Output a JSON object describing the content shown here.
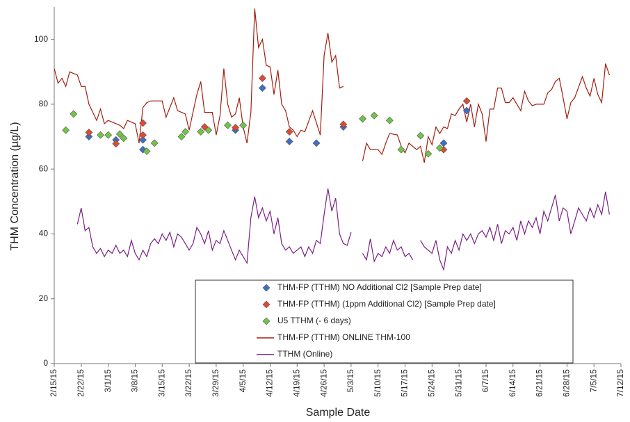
{
  "chart_data": {
    "type": "line",
    "xlabel": "Sample Date",
    "ylabel": "THM Concentration (µg/L)",
    "xlim": [
      "2/15/15",
      "7/12/15"
    ],
    "xticks": [
      "2/15/15",
      "2/22/15",
      "3/1/15",
      "3/8/15",
      "3/15/15",
      "3/22/15",
      "3/29/15",
      "4/5/15",
      "4/12/15",
      "4/19/15",
      "4/26/15",
      "5/3/15",
      "5/10/15",
      "5/17/15",
      "5/24/15",
      "5/31/15",
      "6/7/15",
      "6/14/15",
      "6/21/15",
      "6/28/15",
      "7/5/15",
      "7/12/15"
    ],
    "ylim": [
      0,
      110
    ],
    "yticks": [
      0,
      20,
      40,
      60,
      80,
      100
    ],
    "series": [
      {
        "name": "THM-FP (TTHM) NO Additional Cl2 [Sample Prep date]",
        "type": "scatter",
        "color": "#3f6fc4",
        "x": [
          "2/24/15",
          "3/3/15",
          "3/10/15",
          "3/10/15",
          "4/3/15",
          "4/10/15",
          "4/17/15",
          "4/24/15",
          "5/1/15",
          "5/27/15",
          "6/2/15"
        ],
        "values": [
          70,
          69,
          69,
          66,
          72,
          85,
          68.5,
          68,
          73,
          68,
          78
        ]
      },
      {
        "name": "THM-FP (TTHM) (1ppm Additional Cl2) [Sample Prep date]",
        "type": "scatter",
        "color": "#e04a32",
        "x": [
          "2/24/15",
          "3/3/15",
          "3/10/15",
          "3/10/15",
          "3/26/15",
          "4/3/15",
          "4/10/15",
          "4/17/15",
          "5/1/15",
          "5/27/15",
          "6/2/15"
        ],
        "values": [
          71.3,
          67.8,
          74.2,
          70.5,
          73,
          72.8,
          88,
          71.5,
          73.8,
          66,
          81
        ]
      },
      {
        "name": "U5 TTHM (- 6 days)",
        "type": "scatter",
        "color": "#72c447",
        "x": [
          "2/18/15",
          "2/20/15",
          "2/27/15",
          "3/1/15",
          "3/4/15",
          "3/5/15",
          "3/11/15",
          "3/13/15",
          "3/20/15",
          "3/21/15",
          "3/25/15",
          "3/27/15",
          "4/1/15",
          "4/5/15",
          "5/6/15",
          "5/9/15",
          "5/13/15",
          "5/16/15",
          "5/21/15",
          "5/23/15",
          "5/26/15"
        ],
        "values": [
          72,
          77,
          70.5,
          70.5,
          70.8,
          69.5,
          65.5,
          68,
          70,
          71.5,
          71.5,
          72,
          73.5,
          73.5,
          75.5,
          76.5,
          75,
          66,
          70.3,
          64.7,
          66.5
        ]
      },
      {
        "name": "THM-FP (TTHM) ONLINE THM-100",
        "type": "line",
        "color": "#a31d0e",
        "x": [
          "2/15/15",
          "2/16/15",
          "2/17/15",
          "2/18/15",
          "2/19/15",
          "2/21/15",
          "2/22/15",
          "2/23/15",
          "2/24/15",
          "2/26/15",
          "2/27/15",
          "2/28/15",
          "3/1/15",
          "3/2/15",
          "3/4/15",
          "3/5/15",
          "3/6/15",
          "3/8/15",
          "3/9/15",
          "3/10/15",
          "3/11/15",
          "3/12/15",
          "3/15/15",
          "3/16/15",
          "3/18/15",
          "3/19/15",
          "3/21/15",
          "3/22/15",
          "3/24/15",
          "3/25/15",
          "3/26/15",
          "3/28/15",
          "3/29/15",
          "3/30/15",
          "3/31/15",
          "4/1/15",
          "4/2/15",
          "4/3/15",
          "4/4/15",
          "4/5/15",
          "4/6/15",
          "4/7/15",
          "4/8/15",
          "4/9/15",
          "4/10/15",
          "4/11/15",
          "4/12/15",
          "4/13/15",
          "4/14/15",
          "4/15/15",
          "4/16/15",
          "4/17/15",
          "4/18/15",
          "4/19/15",
          "4/20/15",
          "4/21/15",
          "4/23/15",
          "4/25/15",
          "4/26/15",
          "4/27/15",
          "4/28/15",
          "4/29/15",
          "4/30/15",
          "5/1/15",
          "5/3/15",
          "5/6/15",
          "5/7/15",
          "5/8/15",
          "5/10/15",
          "5/11/15",
          "5/12/15",
          "5/13/15",
          "5/15/15",
          "5/16/15",
          "5/17/15",
          "5/18/15",
          "5/20/15",
          "5/21/15",
          "5/22/15",
          "5/23/15",
          "5/24/15",
          "5/25/15",
          "5/26/15",
          "5/27/15",
          "5/28/15",
          "5/29/15",
          "5/30/15",
          "5/31/15",
          "6/1/15",
          "6/2/15",
          "6/3/15",
          "6/4/15",
          "6/5/15",
          "6/6/15",
          "6/7/15",
          "6/8/15",
          "6/9/15",
          "6/10/15",
          "6/11/15",
          "6/12/15",
          "6/13/15",
          "6/14/15",
          "6/15/15",
          "6/16/15",
          "6/17/15",
          "6/18/15",
          "6/19/15",
          "6/20/15",
          "6/22/15",
          "6/23/15",
          "6/24/15",
          "6/25/15",
          "6/26/15",
          "6/27/15",
          "6/28/15",
          "6/29/15",
          "6/30/15",
          "7/2/15",
          "7/3/15",
          "7/4/15",
          "7/5/15",
          "7/6/15",
          "7/7/15",
          "7/8/15",
          "7/9/15"
        ],
        "values": [
          91,
          86.5,
          88,
          85.5,
          90,
          89,
          85.5,
          85.5,
          80,
          75,
          78.5,
          74,
          75,
          74.5,
          73.5,
          72.5,
          75,
          74,
          68,
          79,
          80.5,
          81,
          81,
          76,
          82,
          78,
          77,
          72,
          83,
          87,
          77.5,
          77.5,
          70.5,
          76.5,
          91,
          80,
          76,
          77,
          82,
          73,
          68,
          77.5,
          109.5,
          97.5,
          100,
          92,
          91.5,
          83,
          90.5,
          80,
          78,
          73,
          72,
          70,
          72,
          71.5,
          78,
          70.5,
          95,
          102,
          93,
          95,
          85,
          85.5,
          null,
          62.5,
          68,
          66,
          66,
          64.5,
          68,
          71,
          70.5,
          67,
          65,
          68,
          66,
          67,
          62,
          70,
          67.5,
          73,
          71,
          73,
          72.5,
          77,
          76.5,
          78.5,
          80,
          74.5,
          80,
          73,
          80,
          77,
          68.5,
          78.5,
          78.5,
          85,
          85,
          80.5,
          80.5,
          82,
          80,
          78,
          84,
          81,
          79.5,
          80,
          80,
          83.5,
          84.5,
          87,
          88,
          82,
          75.5,
          80.5,
          82,
          88.5,
          85,
          82.5,
          88,
          83,
          80.5,
          92.5,
          89
        ]
      },
      {
        "name": "TTHM (Online)",
        "type": "line",
        "color": "#7a1f86",
        "x": [
          "2/21/15",
          "2/22/15",
          "2/23/15",
          "2/24/15",
          "2/25/15",
          "2/26/15",
          "2/27/15",
          "2/28/15",
          "3/1/15",
          "3/2/15",
          "3/3/15",
          "3/4/15",
          "3/5/15",
          "3/6/15",
          "3/7/15",
          "3/8/15",
          "3/9/15",
          "3/10/15",
          "3/11/15",
          "3/12/15",
          "3/13/15",
          "3/14/15",
          "3/15/15",
          "3/16/15",
          "3/17/15",
          "3/18/15",
          "3/19/15",
          "3/20/15",
          "3/21/15",
          "3/22/15",
          "3/23/15",
          "3/24/15",
          "3/25/15",
          "3/26/15",
          "3/27/15",
          "3/28/15",
          "3/29/15",
          "3/30/15",
          "3/31/15",
          "4/1/15",
          "4/2/15",
          "4/3/15",
          "4/4/15",
          "4/5/15",
          "4/6/15",
          "4/7/15",
          "4/8/15",
          "4/9/15",
          "4/10/15",
          "4/11/15",
          "4/12/15",
          "4/13/15",
          "4/14/15",
          "4/15/15",
          "4/16/15",
          "4/17/15",
          "4/18/15",
          "4/19/15",
          "4/20/15",
          "4/21/15",
          "4/22/15",
          "4/23/15",
          "4/24/15",
          "4/25/15",
          "4/26/15",
          "4/27/15",
          "4/28/15",
          "4/29/15",
          "4/30/15",
          "5/1/15",
          "5/2/15",
          "5/3/15",
          "5/4/15",
          "5/6/15",
          "5/7/15",
          "5/8/15",
          "5/9/15",
          "5/10/15",
          "5/11/15",
          "5/12/15",
          "5/13/15",
          "5/14/15",
          "5/15/15",
          "5/16/15",
          "5/17/15",
          "5/18/15",
          "5/19/15",
          "5/20/15",
          "5/21/15",
          "5/22/15",
          "5/23/15",
          "5/24/15",
          "5/25/15",
          "5/26/15",
          "5/27/15",
          "5/28/15",
          "5/29/15",
          "5/30/15",
          "5/31/15",
          "6/1/15",
          "6/2/15",
          "6/3/15",
          "6/4/15",
          "6/5/15",
          "6/6/15",
          "6/7/15",
          "6/8/15",
          "6/9/15",
          "6/10/15",
          "6/11/15",
          "6/12/15",
          "6/13/15",
          "6/14/15",
          "6/15/15",
          "6/16/15",
          "6/17/15",
          "6/18/15",
          "6/19/15",
          "6/20/15",
          "6/21/15",
          "6/22/15",
          "6/23/15",
          "6/24/15",
          "6/25/15",
          "6/26/15",
          "6/27/15",
          "6/28/15",
          "6/29/15",
          "6/30/15",
          "7/1/15",
          "7/2/15",
          "7/3/15",
          "7/4/15",
          "7/5/15",
          "7/6/15",
          "7/7/15",
          "7/8/15",
          "7/9/15"
        ],
        "values": [
          43,
          48,
          41,
          42,
          36,
          34,
          35.5,
          33,
          35,
          34,
          36.5,
          34,
          35,
          33,
          38,
          34,
          32,
          35,
          33,
          37,
          38.5,
          37,
          40,
          38,
          40.5,
          36,
          40,
          39,
          37,
          35,
          37,
          42,
          40,
          37,
          41,
          35,
          38,
          37,
          41,
          38,
          35,
          32,
          35,
          33,
          31,
          45,
          51.5,
          45,
          48,
          44,
          47,
          40,
          45,
          37,
          35,
          36,
          34,
          35,
          36,
          33,
          36,
          34,
          38,
          37,
          46,
          54,
          47,
          51,
          40,
          37,
          36.5,
          40.5,
          null,
          34,
          32,
          38.5,
          31.5,
          34,
          33,
          36,
          34,
          38,
          35,
          36,
          33,
          34,
          32,
          null,
          38,
          36,
          35,
          34,
          38,
          32,
          29,
          36,
          34,
          38,
          35,
          40,
          38,
          40,
          37,
          40,
          41,
          39,
          42,
          38,
          43,
          37,
          41,
          40,
          42,
          38,
          44,
          40,
          44,
          42,
          45,
          40,
          47,
          44,
          48,
          52,
          44,
          48,
          47,
          40,
          44,
          48,
          46,
          44,
          48,
          45,
          49,
          46,
          53,
          46
        ]
      }
    ]
  }
}
